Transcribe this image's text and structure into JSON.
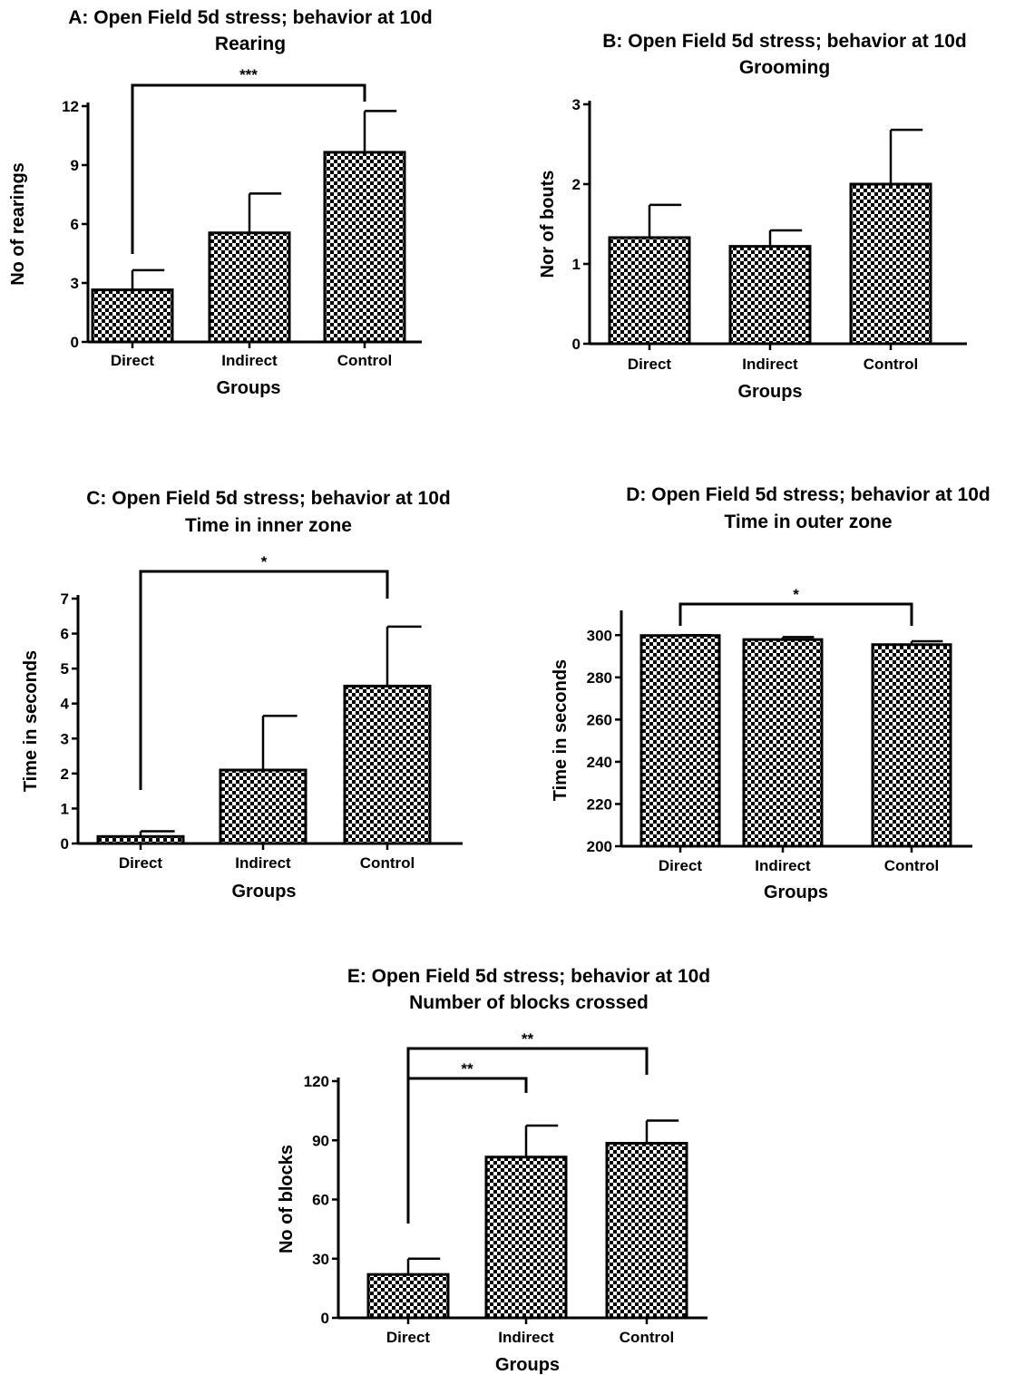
{
  "chart_data": [
    {
      "type": "bar",
      "title": "A: Open Field 5d stress; behavior at 10d",
      "subtitle": "Rearing",
      "xlabel": "Groups",
      "ylabel": "No of rearings",
      "categories": [
        "Direct",
        "Indirect",
        "Control"
      ],
      "values": [
        2.65,
        5.55,
        9.65
      ],
      "errors": [
        1.0,
        2.0,
        2.1
      ],
      "ylim": [
        0,
        12
      ],
      "yticks": [
        "0",
        "3",
        "6",
        "9",
        "12"
      ],
      "bar_pattern": "checkerboard",
      "significance": [
        {
          "from": "Direct",
          "to": "Control",
          "label": "***"
        }
      ]
    },
    {
      "type": "bar",
      "title": "B: Open Field 5d stress; behavior at 10d",
      "subtitle": "Grooming",
      "xlabel": "Groups",
      "ylabel": "Nor of bouts",
      "categories": [
        "Direct",
        "Indirect",
        "Control"
      ],
      "values": [
        1.33,
        1.22,
        2.0
      ],
      "errors": [
        0.41,
        0.2,
        0.68
      ],
      "ylim": [
        0,
        3
      ],
      "yticks": [
        "0",
        "1",
        "2",
        "3"
      ],
      "bar_pattern": "checkerboard",
      "significance": []
    },
    {
      "type": "bar",
      "title": "C: Open Field 5d stress; behavior at 10d",
      "subtitle": "Time in inner zone",
      "xlabel": "Groups",
      "ylabel": "Time in seconds",
      "categories": [
        "Direct",
        "Indirect",
        "Control"
      ],
      "values": [
        0.2,
        2.1,
        4.5
      ],
      "errors": [
        0.15,
        1.55,
        1.7
      ],
      "ylim": [
        0,
        7
      ],
      "yticks": [
        "0",
        "1",
        "2",
        "3",
        "4",
        "5",
        "6",
        "7"
      ],
      "bar_pattern": "checkerboard",
      "significance": [
        {
          "from": "Direct",
          "to": "Control",
          "label": "*"
        }
      ]
    },
    {
      "type": "bar",
      "title": "D: Open Field 5d stress; behavior at 10d",
      "subtitle": "Time in outer zone",
      "xlabel": "Groups",
      "ylabel": "Time in seconds",
      "categories": [
        "Direct",
        "Indirect",
        "Control"
      ],
      "values": [
        299.8,
        297.9,
        295.5
      ],
      "errors": [
        0.2,
        1.2,
        1.6
      ],
      "ylim": [
        200,
        310
      ],
      "yticks": [
        "200",
        "220",
        "240",
        "260",
        "280",
        "300"
      ],
      "bar_pattern": "checkerboard",
      "significance": [
        {
          "from": "Direct",
          "to": "Control",
          "label": "*"
        }
      ]
    },
    {
      "type": "bar",
      "title": "E: Open Field 5d stress; behavior at 10d",
      "subtitle": "Number of blocks crossed",
      "xlabel": "Groups",
      "ylabel": "No of blocks",
      "categories": [
        "Direct",
        "Indirect",
        "Control"
      ],
      "values": [
        22,
        81.5,
        88.5
      ],
      "errors": [
        8,
        16,
        11.5
      ],
      "ylim": [
        0,
        120
      ],
      "yticks": [
        "0",
        "30",
        "60",
        "90",
        "120"
      ],
      "bar_pattern": "checkerboard",
      "significance": [
        {
          "from": "Direct",
          "to": "Indirect",
          "label": "**"
        },
        {
          "from": "Direct",
          "to": "Control",
          "label": "**"
        }
      ]
    }
  ]
}
